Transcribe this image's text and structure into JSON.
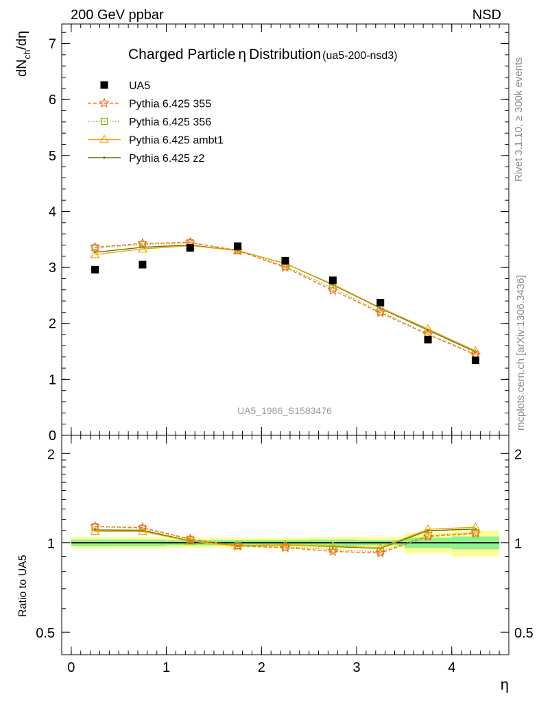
{
  "header": {
    "left": "200 GeV ppbar",
    "right": "NSD"
  },
  "side_labels": {
    "rivet": "Rivet 3.1.10, ≥ 300k events",
    "mcplots": "mcplots.cern.ch [arXiv:1306.3436]"
  },
  "watermark": "UA5_1986_S1583476",
  "chart_data": [
    {
      "type": "scatter",
      "title": "Charged Particle",
      "title_symbol": "η",
      "title_suffix": "Distribution",
      "subtitle": "(ua5-200-nsd3)",
      "ylabel": "dN_ch/dη",
      "xlabel": "η",
      "xlim": [
        -0.1,
        4.6
      ],
      "ylim": [
        0,
        7.35
      ],
      "xticks": [
        "0",
        "1",
        "2",
        "3",
        "4"
      ],
      "yticks": [
        "0",
        "1",
        "2",
        "3",
        "4",
        "5",
        "6",
        "7"
      ],
      "x": [
        0.25,
        0.75,
        1.25,
        1.75,
        2.25,
        2.75,
        3.25,
        3.75,
        4.25
      ],
      "legend_position": "top-left",
      "series": [
        {
          "name": "UA5",
          "style": "data",
          "color": "#000000",
          "values": [
            2.96,
            3.05,
            3.35,
            3.38,
            3.12,
            2.77,
            2.37,
            1.71,
            1.34
          ]
        },
        {
          "name": "Pythia 6.425 355",
          "style": "dash-star",
          "color": "#ff6a1f",
          "values": [
            3.36,
            3.43,
            3.45,
            3.3,
            3.0,
            2.59,
            2.19,
            1.8,
            1.44
          ]
        },
        {
          "name": "Pythia 6.425 356",
          "style": "dot-square",
          "color": "#7fb200",
          "values": [
            3.35,
            3.41,
            3.44,
            3.31,
            3.02,
            2.63,
            2.21,
            1.81,
            1.45
          ]
        },
        {
          "name": "Pythia 6.425 ambt1",
          "style": "solid-triangle",
          "color": "#f0a400",
          "values": [
            3.23,
            3.33,
            3.39,
            3.3,
            3.07,
            2.7,
            2.28,
            1.9,
            1.51
          ]
        },
        {
          "name": "Pythia 6.425 z2",
          "style": "solid-dot",
          "color": "#6b6b00",
          "values": [
            3.27,
            3.36,
            3.4,
            3.3,
            3.07,
            2.69,
            2.27,
            1.88,
            1.49
          ]
        }
      ]
    },
    {
      "type": "line",
      "ylabel": "Ratio to UA5",
      "xlabel": "η",
      "xlim": [
        -0.1,
        4.6
      ],
      "ylim": [
        0.42,
        2.3
      ],
      "scale": "log",
      "yticks": [
        "0.5",
        "1",
        "2"
      ],
      "yticks_right": [
        "0.5",
        "1",
        "2"
      ],
      "x": [
        0.25,
        0.75,
        1.25,
        1.75,
        2.25,
        2.75,
        3.25,
        3.75,
        4.25
      ],
      "bands": {
        "bins": [
          [
            -0.0,
            0.5
          ],
          [
            0.5,
            1.0
          ],
          [
            1.0,
            1.5
          ],
          [
            1.5,
            2.0
          ],
          [
            2.0,
            2.5
          ],
          [
            2.5,
            3.0
          ],
          [
            3.0,
            3.5
          ],
          [
            3.5,
            4.0
          ],
          [
            4.0,
            4.5
          ]
        ],
        "stat": [
          0.025,
          0.025,
          0.02,
          0.02,
          0.02,
          0.025,
          0.02,
          0.04,
          0.05
        ],
        "total": [
          0.045,
          0.045,
          0.04,
          0.04,
          0.04,
          0.045,
          0.045,
          0.08,
          0.1
        ],
        "stat_color": "#8ef08e",
        "total_color": "#fefe99"
      },
      "series": [
        {
          "name": "Pythia 6.425 355",
          "style": "dash-star",
          "color": "#ff6a1f",
          "values": [
            1.135,
            1.125,
            1.03,
            0.975,
            0.963,
            0.935,
            0.924,
            1.05,
            1.075
          ]
        },
        {
          "name": "Pythia 6.425 356",
          "style": "dot-square",
          "color": "#7fb200",
          "values": [
            1.132,
            1.118,
            1.027,
            0.979,
            0.968,
            0.949,
            0.932,
            1.058,
            1.08
          ]
        },
        {
          "name": "Pythia 6.425 ambt1",
          "style": "solid-triangle",
          "color": "#f0a400",
          "values": [
            1.092,
            1.092,
            1.012,
            0.976,
            0.984,
            0.975,
            0.962,
            1.11,
            1.128
          ]
        },
        {
          "name": "Pythia 6.425 z2",
          "style": "solid-dot",
          "color": "#6b6b00",
          "values": [
            1.105,
            1.102,
            1.015,
            0.976,
            0.984,
            0.971,
            0.958,
            1.099,
            1.112
          ]
        }
      ]
    }
  ]
}
